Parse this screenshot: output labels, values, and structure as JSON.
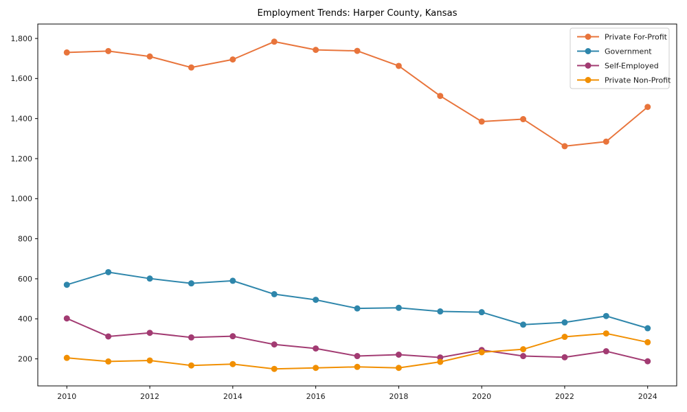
{
  "figure": {
    "title": "Employment Trends: Harper County, Kansas"
  },
  "chart_data": {
    "type": "line",
    "title": "Employment Trends: Harper County, Kansas",
    "xlabel": "",
    "ylabel": "",
    "grid": false,
    "marker": "o",
    "x": [
      2010,
      2011,
      2012,
      2013,
      2014,
      2015,
      2016,
      2017,
      2018,
      2019,
      2020,
      2021,
      2022,
      2023,
      2024
    ],
    "series": [
      {
        "name": "Private For-Profit",
        "color": "#e8743b",
        "values": [
          1730,
          1737,
          1710,
          1655,
          1695,
          1784,
          1743,
          1738,
          1663,
          1513,
          1385,
          1397,
          1262,
          1285,
          1458
        ]
      },
      {
        "name": "Government",
        "color": "#2e86ab",
        "values": [
          570,
          633,
          601,
          577,
          590,
          523,
          495,
          452,
          455,
          437,
          433,
          371,
          382,
          414,
          353
        ]
      },
      {
        "name": "Self-Employed",
        "color": "#a23b72",
        "values": [
          402,
          312,
          330,
          307,
          313,
          272,
          252,
          214,
          221,
          207,
          244,
          214,
          208,
          238,
          188
        ]
      },
      {
        "name": "Private Non-Profit",
        "color": "#f18f01",
        "values": [
          205,
          187,
          192,
          167,
          174,
          150,
          155,
          160,
          155,
          185,
          233,
          248,
          310,
          327,
          283
        ]
      }
    ],
    "xlim": [
      2009.3,
      2024.7
    ],
    "ylim": [
      65,
      1872
    ],
    "xticks": {
      "values": [
        2010,
        2012,
        2014,
        2016,
        2018,
        2020,
        2022,
        2024
      ],
      "labels": [
        "2010",
        "2012",
        "2014",
        "2016",
        "2018",
        "2020",
        "2022",
        "2024"
      ]
    },
    "yticks": {
      "values": [
        200,
        400,
        600,
        800,
        1000,
        1200,
        1400,
        1600,
        1800
      ],
      "labels": [
        "200",
        "400",
        "600",
        "800",
        "1,000",
        "1,200",
        "1,400",
        "1,600",
        "1,800"
      ]
    },
    "legend": {
      "position": "upper right",
      "entries": [
        "Private For-Profit",
        "Government",
        "Self-Employed",
        "Private Non-Profit"
      ]
    }
  },
  "colors": {
    "background": "#ffffff",
    "axis": "#000000",
    "tick_text": "#1a1a1a",
    "legend_border": "#cccccc",
    "legend_background": "#ffffff"
  }
}
